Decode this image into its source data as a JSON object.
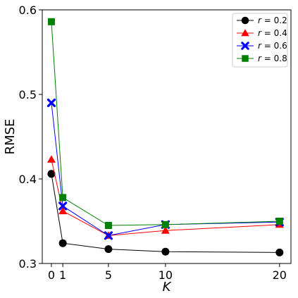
{
  "chart_data": {
    "type": "line",
    "xlabel": "K",
    "ylabel": "RMSE",
    "x": [
      0,
      1,
      5,
      10,
      20
    ],
    "xticks": [
      "0",
      "1",
      "5",
      "10",
      "20"
    ],
    "xlim": [
      -0.8,
      21
    ],
    "ylim": [
      0.3,
      0.6
    ],
    "yticks": [
      "0.3",
      "0.4",
      "0.5",
      "0.6"
    ],
    "grid": false,
    "legend_position": "top-right",
    "series": [
      {
        "name": "r = 0.2",
        "var": "r",
        "val": "0.2",
        "color": "#000000",
        "marker": "circle",
        "values": [
          0.406,
          0.324,
          0.317,
          0.314,
          0.313
        ]
      },
      {
        "name": "r = 0.4",
        "var": "r",
        "val": "0.4",
        "color": "#ff0000",
        "marker": "triangle",
        "values": [
          0.423,
          0.362,
          0.333,
          0.339,
          0.346
        ]
      },
      {
        "name": "r = 0.6",
        "var": "r",
        "val": "0.6",
        "color": "#0000ff",
        "marker": "x",
        "values": [
          0.49,
          0.368,
          0.333,
          0.346,
          0.349
        ]
      },
      {
        "name": "r = 0.8",
        "var": "r",
        "val": "0.8",
        "color": "#008000",
        "marker": "square",
        "values": [
          0.586,
          0.378,
          0.345,
          0.346,
          0.35
        ]
      }
    ]
  }
}
